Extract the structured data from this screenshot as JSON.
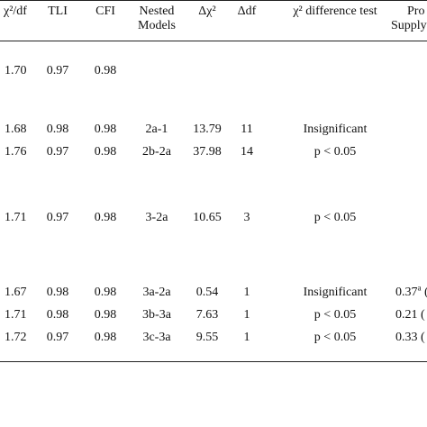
{
  "headers": {
    "chi_df": "χ²/df",
    "tli": "TLI",
    "cfi": "CFI",
    "nested_line1": "Nested",
    "nested_line2": "Models",
    "delta_chi": "Δχ²",
    "delta_df": "Δdf",
    "diff_test": "χ² difference test",
    "prov_line1": "Pro",
    "prov_line2": "Supply"
  },
  "rows": [
    {
      "chi_df": "1.70",
      "tli": "0.97",
      "cfi": "0.98",
      "nested": "",
      "delta_chi": "",
      "delta_df": "",
      "diff_test": "",
      "prov": ""
    },
    {
      "chi_df": "1.68",
      "tli": "0.98",
      "cfi": "0.98",
      "nested": "2a-1",
      "delta_chi": "13.79",
      "delta_df": "11",
      "diff_test": "Insignificant",
      "prov": ""
    },
    {
      "chi_df": "1.76",
      "tli": "0.97",
      "cfi": "0.98",
      "nested": "2b-2a",
      "delta_chi": "37.98",
      "delta_df": "14",
      "diff_test": "p < 0.05",
      "prov": ""
    },
    {
      "chi_df": "1.71",
      "tli": "0.97",
      "cfi": "0.98",
      "nested": "3-2a",
      "delta_chi": "10.65",
      "delta_df": "3",
      "diff_test": "p < 0.05",
      "prov": ""
    },
    {
      "chi_df": "1.67",
      "tli": "0.98",
      "cfi": "0.98",
      "nested": "3a-2a",
      "delta_chi": "0.54",
      "delta_df": "1",
      "diff_test": "Insignificant",
      "prov": "0.37",
      "prov_sup": "a",
      "prov_tail": " ("
    },
    {
      "chi_df": "1.71",
      "tli": "0.98",
      "cfi": "0.98",
      "nested": "3b-3a",
      "delta_chi": "7.63",
      "delta_df": "1",
      "diff_test": "p < 0.05",
      "prov": "0.21 (",
      "prov_sup": "",
      "prov_tail": ""
    },
    {
      "chi_df": "1.72",
      "tli": "0.97",
      "cfi": "0.98",
      "nested": "3c-3a",
      "delta_chi": "9.55",
      "delta_df": "1",
      "diff_test": "p < 0.05",
      "prov": "0.33 (",
      "prov_sup": "",
      "prov_tail": ""
    }
  ]
}
